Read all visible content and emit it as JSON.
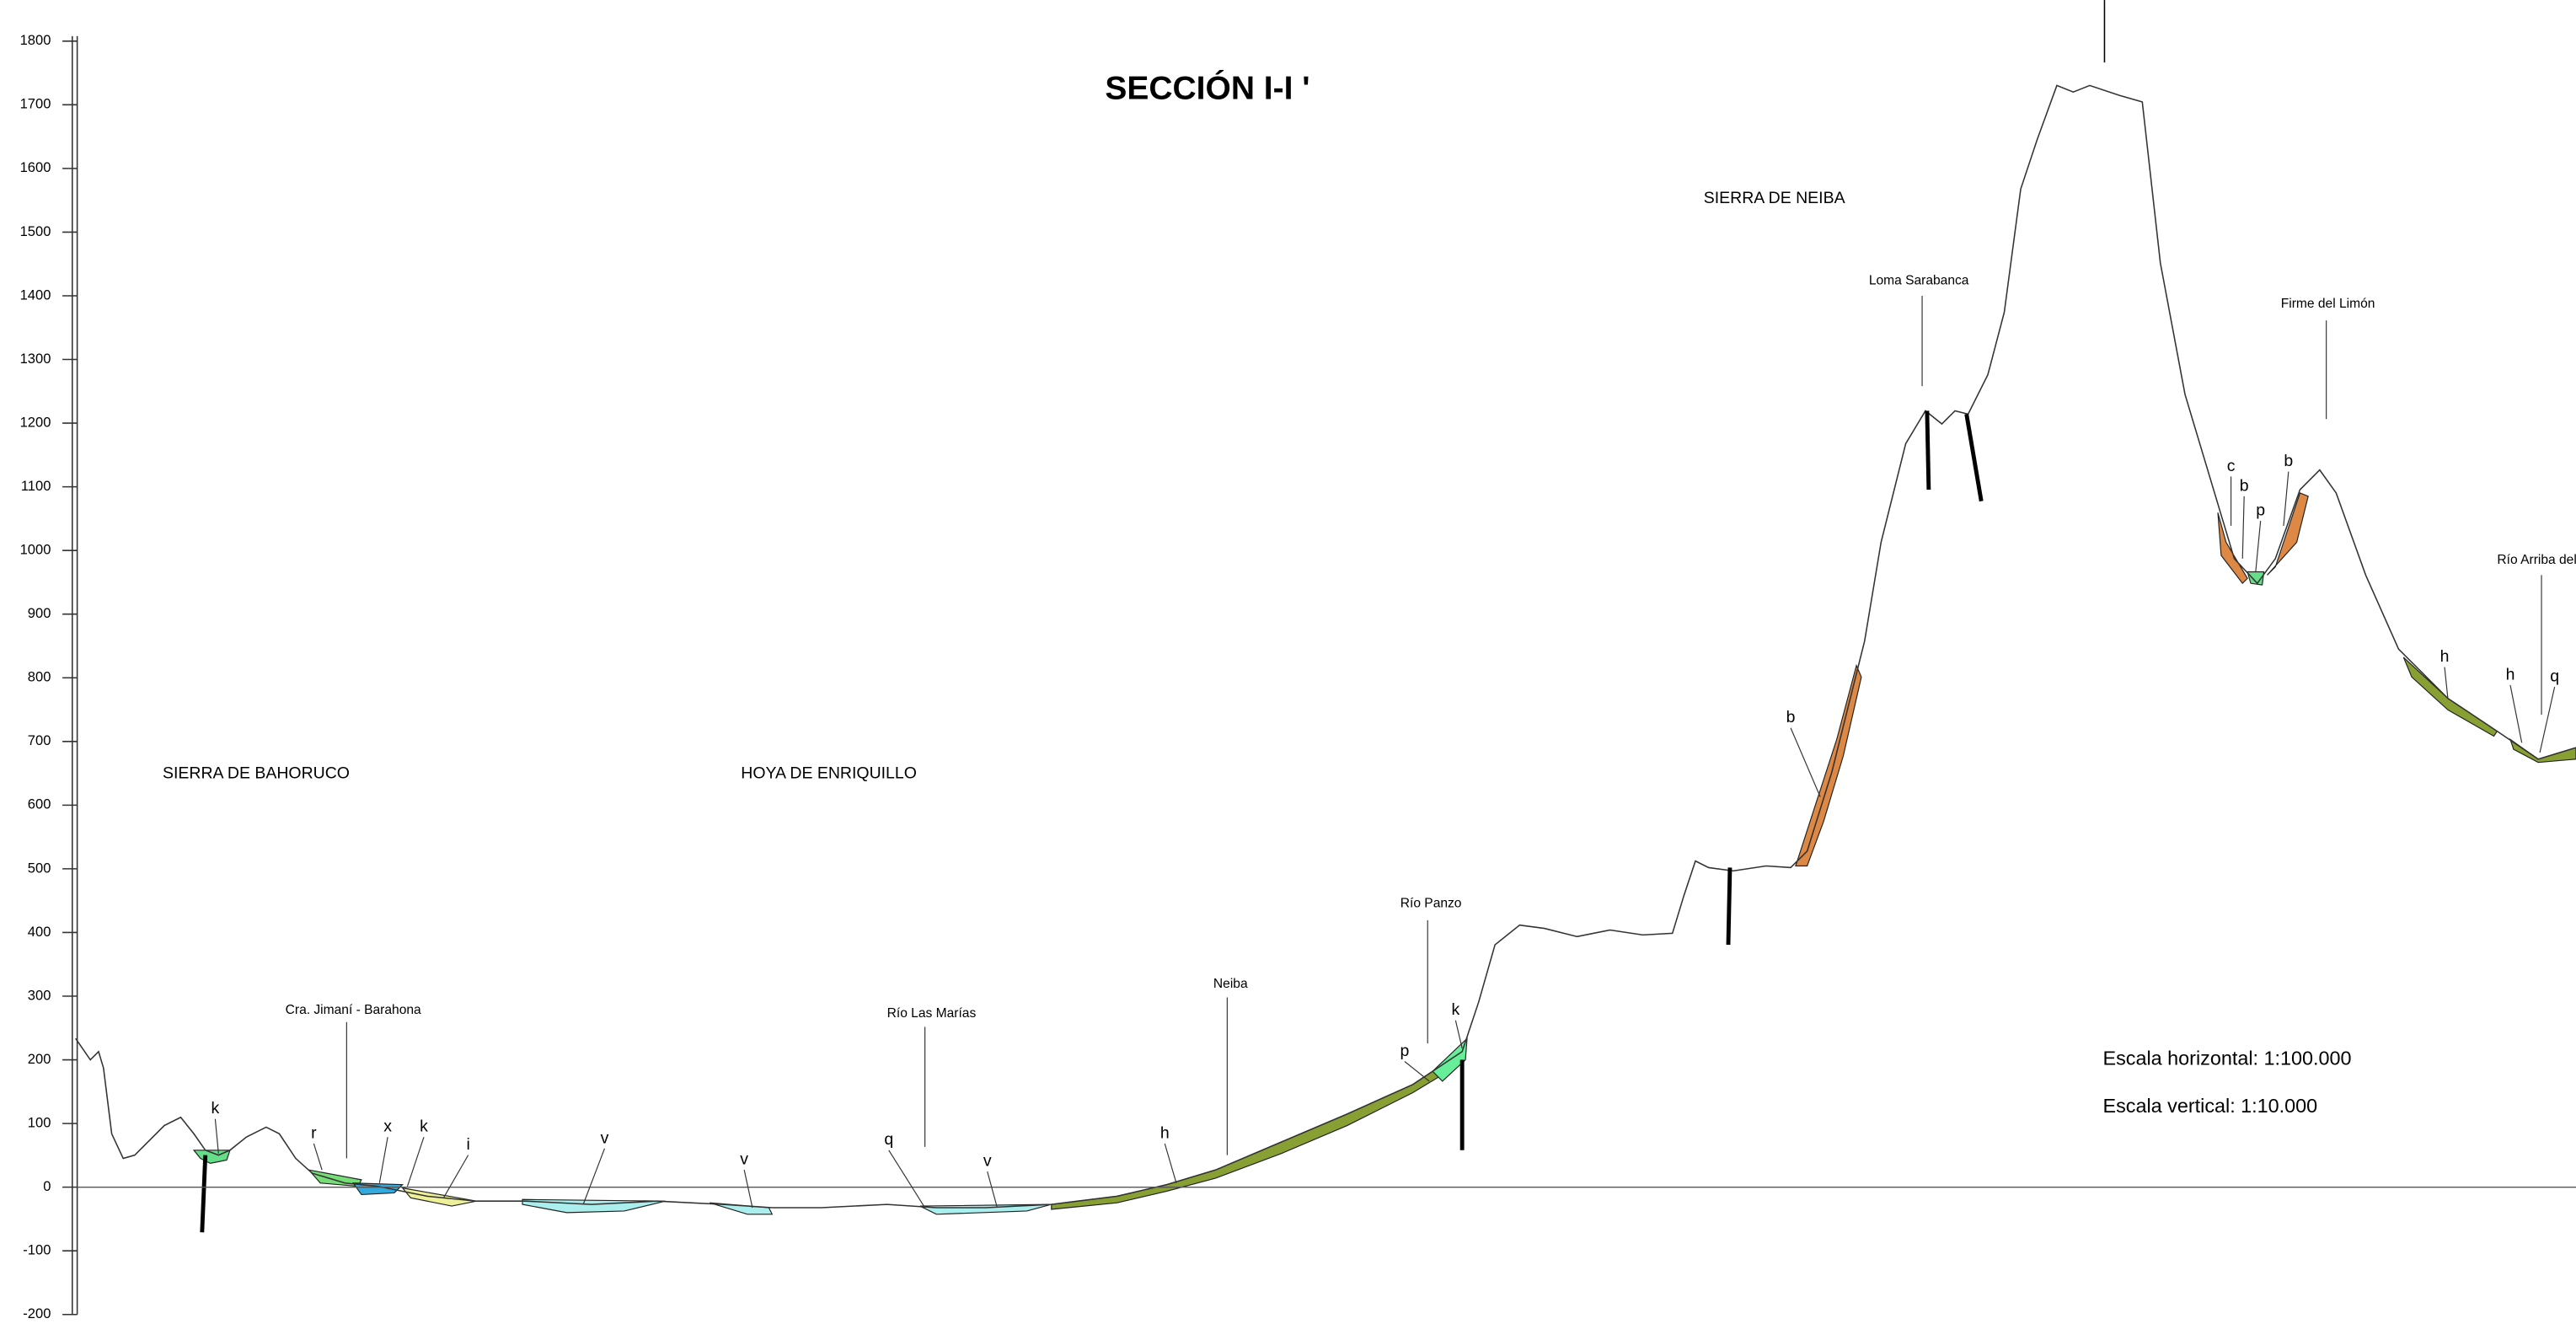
{
  "title": "SECCIÓN I-I '",
  "axis": {
    "ticks": [
      -200,
      -100,
      0,
      100,
      200,
      300,
      400,
      500,
      600,
      700,
      800,
      900,
      1000,
      1100,
      1200,
      1300,
      1400,
      1500,
      1600,
      1700,
      1800
    ]
  },
  "regions": [
    "SIERRA DE BAHORUCO",
    "HOYA DE ENRIQUILLO",
    "SIERRA DE NEIBA"
  ],
  "places": [
    "Cra. Jimaní - Barahona",
    "Río Las Marías",
    "Neiba",
    "Río Panzo",
    "Loma Sarabanca",
    "Firme del Limón",
    "Río Arriba del"
  ],
  "units": [
    "k",
    "r",
    "x",
    "k",
    "i",
    "v",
    "v",
    "q",
    "v",
    "h",
    "p",
    "k",
    "b",
    "c",
    "b",
    "p",
    "b",
    "h",
    "h",
    "q"
  ],
  "scale": [
    "Escala horizontal: 1:100.000",
    "Escala vertical: 1:10.000"
  ]
}
